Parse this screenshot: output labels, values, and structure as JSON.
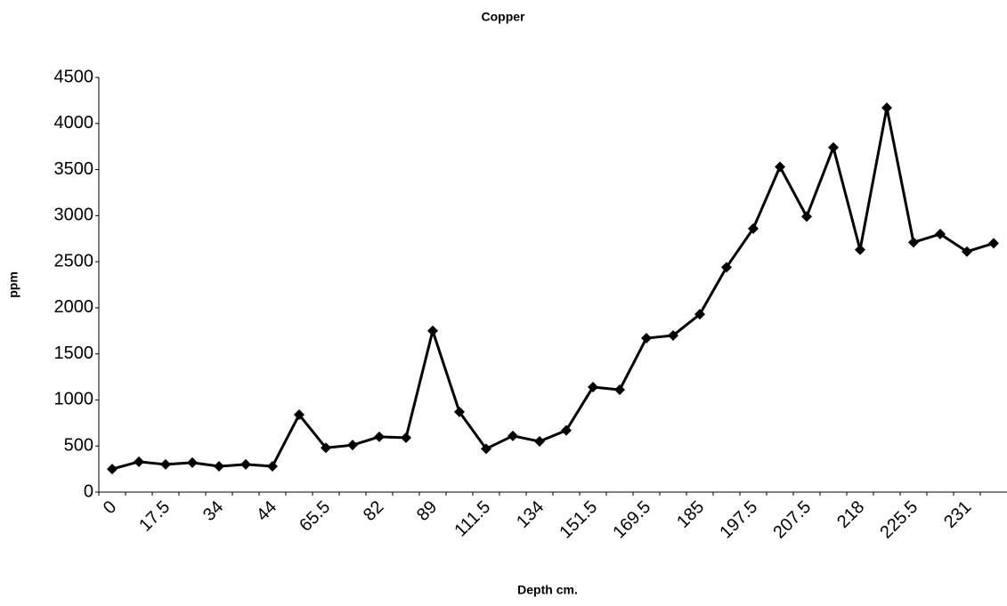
{
  "chart_data": {
    "type": "line",
    "title": "Copper",
    "x_label": "Depth cm.",
    "y_label": "ppm",
    "categories": [
      "0",
      null,
      "17.5",
      null,
      "34",
      null,
      "44",
      null,
      "65.5",
      null,
      "82",
      null,
      "89",
      null,
      "111.5",
      null,
      "134",
      null,
      "151.5",
      null,
      "169.5",
      null,
      "185",
      null,
      "197.5",
      null,
      "207.5",
      null,
      "218",
      null,
      "225.5",
      null,
      "231",
      null
    ],
    "series": [
      {
        "name": "Copper",
        "color": "#000000",
        "values": [
          250,
          330,
          300,
          320,
          280,
          300,
          280,
          840,
          480,
          510,
          600,
          590,
          1750,
          870,
          470,
          610,
          550,
          670,
          1140,
          1110,
          1670,
          1700,
          1930,
          2440,
          2860,
          3530,
          2990,
          3740,
          2630,
          4170,
          2710,
          2800,
          2610,
          2700
        ]
      }
    ],
    "ylim": [
      0,
      4500
    ],
    "yticks": [
      0,
      500,
      1000,
      1500,
      2000,
      2500,
      3000,
      3500,
      4000,
      4500
    ],
    "grid": false,
    "legend": false
  }
}
